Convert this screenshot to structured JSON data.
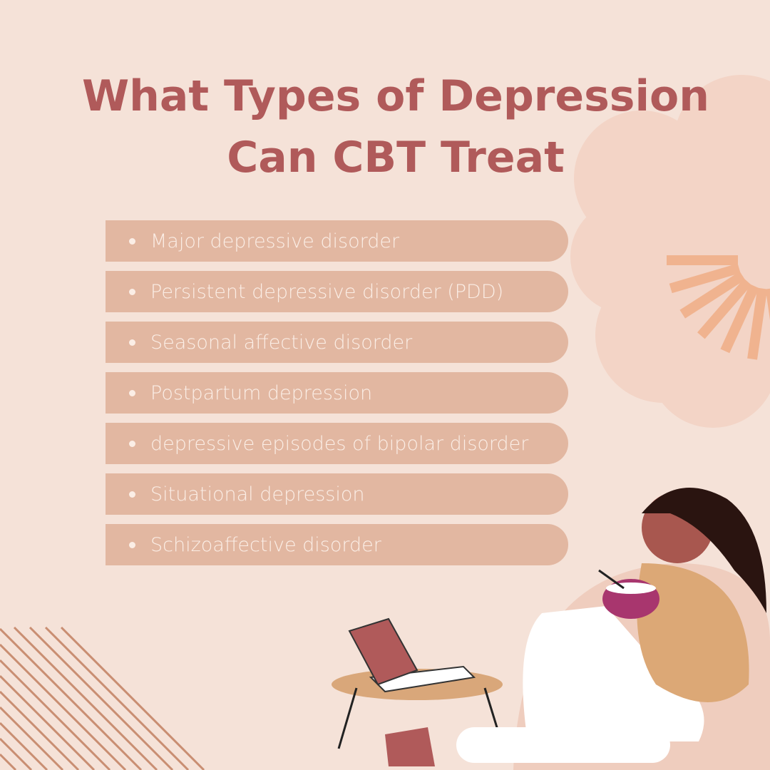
{
  "title_line1": "What Types of Depression",
  "title_line2": "Can CBT Treat",
  "items": [
    "Major depressive disorder",
    "Persistent depressive disorder (PDD)",
    "Seasonal affective disorder",
    "Postpartum depression",
    "depressive episodes of bipolar disorder",
    "Situational depression",
    "Schizoaffective disorder"
  ],
  "colors": {
    "background": "#f5e2d8",
    "title": "#b05a5a",
    "bar": "#e2b7a1",
    "accent": "#f0b38f"
  }
}
